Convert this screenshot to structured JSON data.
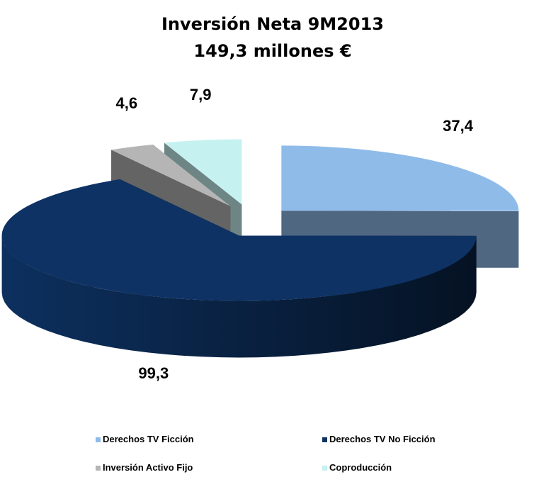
{
  "chart_data": {
    "type": "pie3d",
    "title": "Inversión Neta 9M2013",
    "subtitle": "149,3 millones €",
    "categories": [
      "Derechos TV Ficción",
      "Derechos TV No Ficción",
      "Inversión Activo Fijo",
      "Coproducción"
    ],
    "values": [
      37.4,
      99.3,
      4.6,
      7.9
    ],
    "value_labels": [
      "37,4",
      "99,3",
      "4,6",
      "7,9"
    ],
    "colors": [
      "#8fbbe9",
      "#0e3264",
      "#b5b5b5",
      "#c6f1f1"
    ],
    "legend": "bottom"
  }
}
